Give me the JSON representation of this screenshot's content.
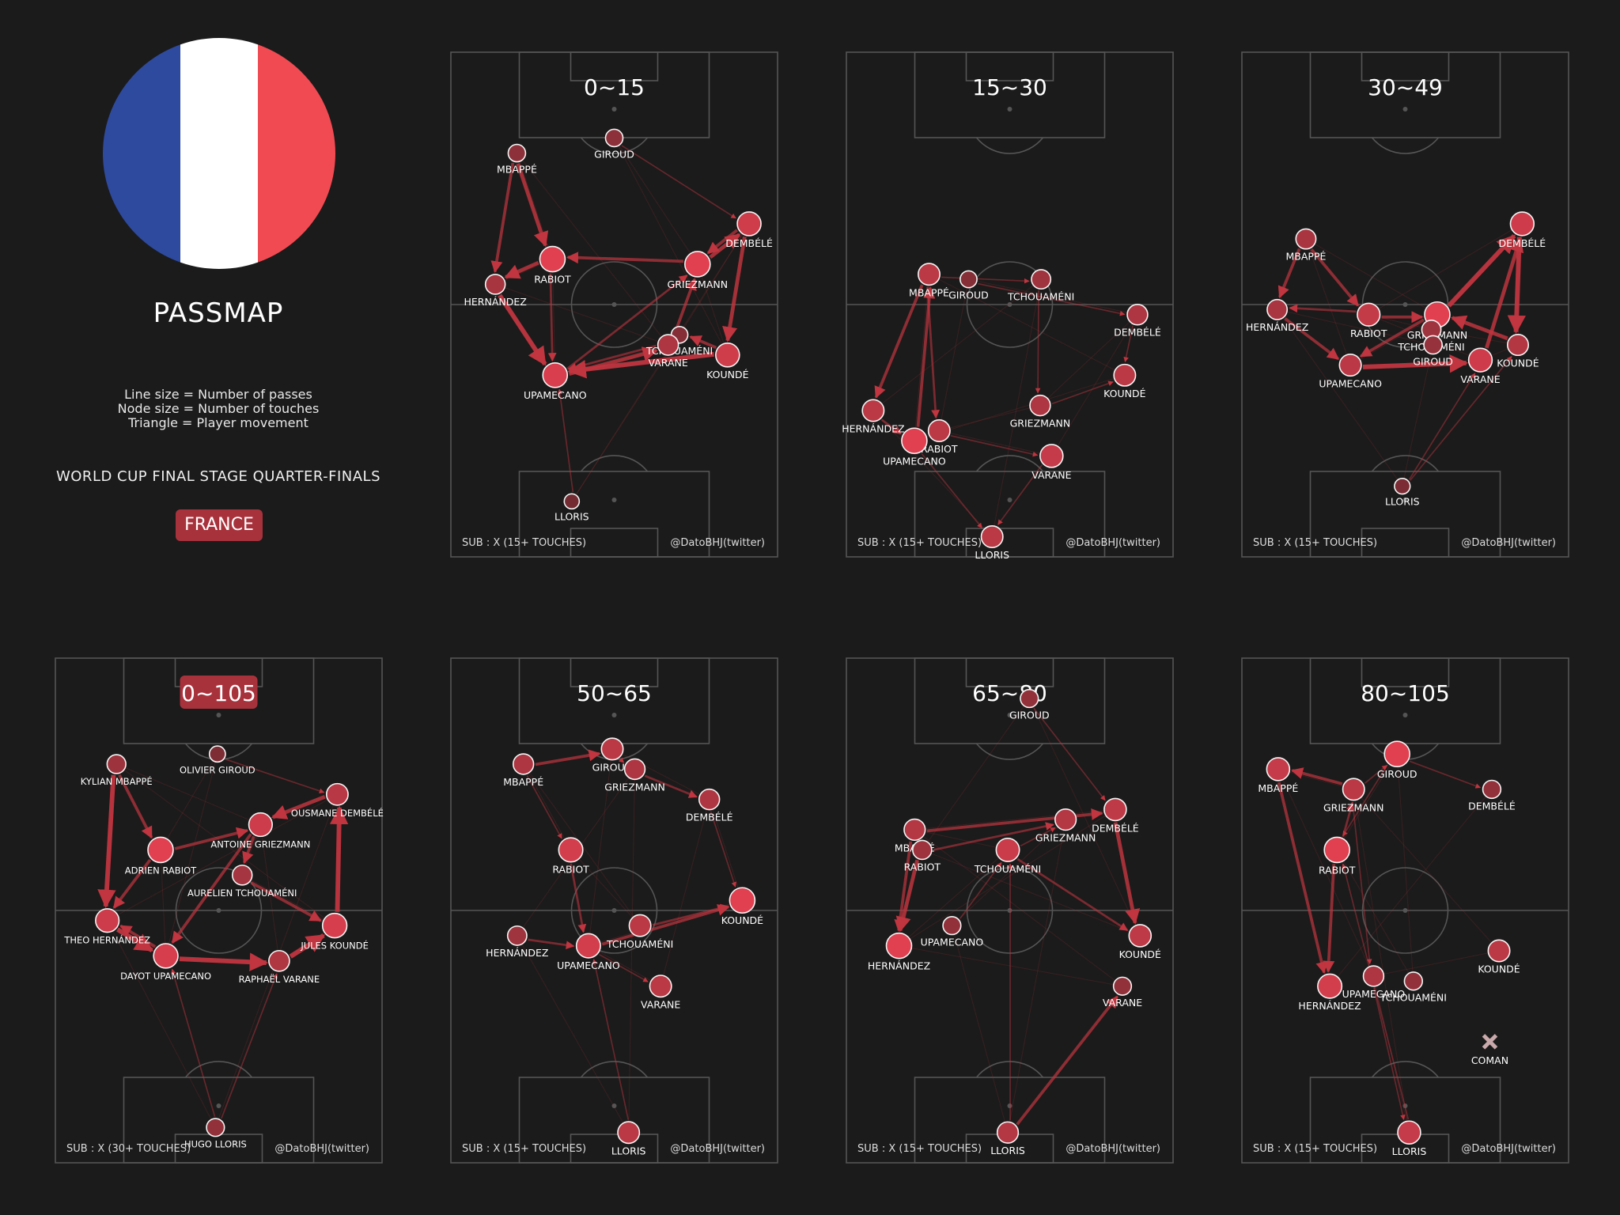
{
  "colors": {
    "background": "#1b1b1b",
    "line": "#555555",
    "accent": "#a8323c",
    "edge": "#c0353f",
    "node_hi": "#e04050",
    "node_lo": "#3a2022",
    "flag_blue": "#2e4a9e",
    "flag_white": "#ffffff",
    "flag_red": "#f24a52"
  },
  "header": {
    "title": "PASSMAP",
    "legend": [
      "Line size = Number of passes",
      "Node size = Number of touches",
      "Triangle = Player movement"
    ],
    "stage": "WORLD CUP FINAL STAGE QUARTER-FINALS",
    "team": "FRANCE"
  },
  "chart_data": [
    {
      "type": "network",
      "title": "0~15",
      "highlight": false,
      "sub_note": "SUB : X (15+ TOUCHES)",
      "credit": "@DatoBHJ(twitter)",
      "players": [
        {
          "name": "GIROUD",
          "x": 50.0,
          "y": 83,
          "t": 10
        },
        {
          "name": "MBAPPÉ",
          "x": 20.2,
          "y": 80,
          "t": 10
        },
        {
          "name": "DEMBÉLÉ",
          "x": 91.3,
          "y": 66,
          "t": 18
        },
        {
          "name": "RABIOT",
          "x": 31.1,
          "y": 59,
          "t": 20
        },
        {
          "name": "GRIEZMANN",
          "x": 75.5,
          "y": 58,
          "t": 20
        },
        {
          "name": "HERNÁNDEZ",
          "x": 13.6,
          "y": 54,
          "t": 13
        },
        {
          "name": "TCHOUAMÉNI",
          "x": 70.0,
          "y": 44,
          "t": 9
        },
        {
          "name": "VARANE",
          "x": 66.5,
          "y": 42,
          "t": 14
        },
        {
          "name": "KOUNDÉ",
          "x": 84.7,
          "y": 40,
          "t": 18
        },
        {
          "name": "UPAMECANO",
          "x": 31.9,
          "y": 36,
          "t": 19
        },
        {
          "name": "LLORIS",
          "x": 37.0,
          "y": 11,
          "t": 7
        }
      ],
      "passes": [
        [
          1,
          3,
          4
        ],
        [
          3,
          5,
          4
        ],
        [
          5,
          9,
          5
        ],
        [
          9,
          7,
          4
        ],
        [
          7,
          4,
          3
        ],
        [
          4,
          2,
          4
        ],
        [
          2,
          8,
          4
        ],
        [
          8,
          9,
          5
        ],
        [
          1,
          5,
          3
        ],
        [
          4,
          3,
          3
        ],
        [
          2,
          4,
          3
        ],
        [
          8,
          6,
          3
        ],
        [
          3,
          9,
          2
        ],
        [
          7,
          9,
          2
        ],
        [
          0,
          2,
          1
        ],
        [
          10,
          9,
          1
        ],
        [
          9,
          4,
          2
        ]
      ]
    },
    {
      "type": "network",
      "title": "15~30",
      "highlight": false,
      "sub_note": "SUB : X (15+ TOUCHES)",
      "credit": "@DatoBHJ(twitter)",
      "players": [
        {
          "name": "MBAPPÉ",
          "x": 25.3,
          "y": 56,
          "t": 10
        },
        {
          "name": "GIROUD",
          "x": 37.4,
          "y": 55,
          "t": 6
        },
        {
          "name": "TCHOUAMÉNI",
          "x": 59.6,
          "y": 55,
          "t": 8
        },
        {
          "name": "DEMBÉLÉ",
          "x": 89.1,
          "y": 48,
          "t": 9
        },
        {
          "name": "KOUNDÉ",
          "x": 85.2,
          "y": 36,
          "t": 10
        },
        {
          "name": "GRIEZMANN",
          "x": 59.3,
          "y": 30,
          "t": 9
        },
        {
          "name": "HERNÁNDEZ",
          "x": 8.2,
          "y": 29,
          "t": 10
        },
        {
          "name": "RABIOT",
          "x": 28.4,
          "y": 25,
          "t": 10
        },
        {
          "name": "UPAMECANO",
          "x": 20.8,
          "y": 23,
          "t": 13
        },
        {
          "name": "VARANE",
          "x": 62.8,
          "y": 20,
          "t": 11
        },
        {
          "name": "LLORIS",
          "x": 44.6,
          "y": 4,
          "t": 10
        }
      ],
      "passes": [
        [
          0,
          6,
          3
        ],
        [
          8,
          0,
          3
        ],
        [
          6,
          8,
          2
        ],
        [
          0,
          7,
          2
        ],
        [
          1,
          3,
          1
        ],
        [
          2,
          5,
          1
        ],
        [
          7,
          9,
          1
        ],
        [
          8,
          10,
          1
        ],
        [
          5,
          4,
          1
        ],
        [
          3,
          4,
          1
        ],
        [
          0,
          2,
          1
        ],
        [
          9,
          10,
          1
        ]
      ]
    },
    {
      "type": "network",
      "title": "30~49",
      "highlight": false,
      "sub_note": "SUB : X (15+ TOUCHES)",
      "credit": "@DatoBHJ(twitter)",
      "players": [
        {
          "name": "MBAPPÉ",
          "x": 19.6,
          "y": 63,
          "t": 12
        },
        {
          "name": "DEMBÉLÉ",
          "x": 85.8,
          "y": 66,
          "t": 16
        },
        {
          "name": "HERNÁNDEZ",
          "x": 10.8,
          "y": 49,
          "t": 12
        },
        {
          "name": "RABIOT",
          "x": 38.8,
          "y": 48,
          "t": 15
        },
        {
          "name": "GRIEZMANN",
          "x": 59.8,
          "y": 48,
          "t": 18
        },
        {
          "name": "TCHOUAMÉNI",
          "x": 58.0,
          "y": 45,
          "t": 11
        },
        {
          "name": "GIROUD",
          "x": 58.5,
          "y": 42,
          "t": 10
        },
        {
          "name": "KOUNDÉ",
          "x": 84.5,
          "y": 42,
          "t": 13
        },
        {
          "name": "UPAMECANO",
          "x": 33.2,
          "y": 38,
          "t": 14
        },
        {
          "name": "VARANE",
          "x": 73.0,
          "y": 39,
          "t": 16
        },
        {
          "name": "LLORIS",
          "x": 49.1,
          "y": 14,
          "t": 7
        }
      ],
      "passes": [
        [
          0,
          2,
          3
        ],
        [
          0,
          3,
          3
        ],
        [
          1,
          7,
          5
        ],
        [
          4,
          1,
          5
        ],
        [
          9,
          1,
          4
        ],
        [
          3,
          4,
          3
        ],
        [
          7,
          4,
          4
        ],
        [
          8,
          9,
          5
        ],
        [
          2,
          8,
          3
        ],
        [
          3,
          2,
          2
        ],
        [
          10,
          7,
          1
        ],
        [
          10,
          9,
          1
        ],
        [
          4,
          8,
          3
        ]
      ]
    },
    {
      "type": "network",
      "title": "0~105",
      "highlight": true,
      "sub_note": "SUB : X (30+ TOUCHES)",
      "credit": "@DatoBHJ(twitter)",
      "players": [
        {
          "name": "OLIVIER GIROUD",
          "x": 49.6,
          "y": 81,
          "t": 7
        },
        {
          "name": "KYLIAN MBAPPÉ",
          "x": 18.7,
          "y": 79,
          "t": 10
        },
        {
          "name": "OUSMANE DEMBÉLÉ",
          "x": 86.3,
          "y": 73,
          "t": 13
        },
        {
          "name": "ANTOINE GRIEZMANN",
          "x": 62.8,
          "y": 67,
          "t": 15
        },
        {
          "name": "ADRIEN RABIOT",
          "x": 32.2,
          "y": 62,
          "t": 17
        },
        {
          "name": "AURELIEN TCHOUAMÉNI",
          "x": 57.2,
          "y": 57,
          "t": 11
        },
        {
          "name": "THEO HERNÁNDEZ",
          "x": 15.9,
          "y": 48,
          "t": 15
        },
        {
          "name": "JULES KOUNDÉ",
          "x": 85.5,
          "y": 47,
          "t": 16
        },
        {
          "name": "DAYOT UPAMECANO",
          "x": 33.8,
          "y": 41,
          "t": 16
        },
        {
          "name": "RAPHAËL VARANE",
          "x": 68.5,
          "y": 40,
          "t": 12
        },
        {
          "name": "HUGO LLORIS",
          "x": 49.0,
          "y": 7,
          "t": 9
        }
      ],
      "passes": [
        [
          1,
          6,
          5
        ],
        [
          6,
          8,
          5
        ],
        [
          8,
          9,
          5
        ],
        [
          9,
          7,
          5
        ],
        [
          7,
          2,
          5
        ],
        [
          2,
          3,
          4
        ],
        [
          3,
          5,
          3
        ],
        [
          4,
          6,
          3
        ],
        [
          5,
          7,
          3
        ],
        [
          1,
          4,
          3
        ],
        [
          4,
          3,
          3
        ],
        [
          3,
          8,
          3
        ],
        [
          8,
          6,
          3
        ],
        [
          0,
          2,
          1
        ],
        [
          10,
          8,
          1
        ],
        [
          10,
          9,
          1
        ]
      ]
    },
    {
      "type": "network",
      "title": "50~65",
      "highlight": false,
      "sub_note": "SUB : X (15+ TOUCHES)",
      "credit": "@DatoBHJ(twitter)",
      "players": [
        {
          "name": "MBAPPÉ",
          "x": 22.2,
          "y": 79,
          "t": 9
        },
        {
          "name": "GIROUD",
          "x": 49.4,
          "y": 82,
          "t": 10
        },
        {
          "name": "GRIEZMANN",
          "x": 56.3,
          "y": 78,
          "t": 9
        },
        {
          "name": "DEMBÉLÉ",
          "x": 79.1,
          "y": 72,
          "t": 9
        },
        {
          "name": "RABIOT",
          "x": 36.7,
          "y": 62,
          "t": 12
        },
        {
          "name": "KOUNDÉ",
          "x": 89.2,
          "y": 52,
          "t": 13
        },
        {
          "name": "HERNÁNDEZ",
          "x": 20.3,
          "y": 45,
          "t": 8
        },
        {
          "name": "UPAMECANO",
          "x": 42.1,
          "y": 43,
          "t": 12
        },
        {
          "name": "TCHOUAMÉNI",
          "x": 57.9,
          "y": 47,
          "t": 10
        },
        {
          "name": "VARANE",
          "x": 64.2,
          "y": 35,
          "t": 10
        },
        {
          "name": "LLORIS",
          "x": 54.4,
          "y": 6,
          "t": 10
        }
      ],
      "passes": [
        [
          0,
          1,
          3
        ],
        [
          7,
          5,
          3
        ],
        [
          8,
          5,
          2
        ],
        [
          4,
          7,
          2
        ],
        [
          6,
          7,
          2
        ],
        [
          2,
          3,
          2
        ],
        [
          7,
          9,
          1
        ],
        [
          3,
          5,
          1
        ],
        [
          0,
          4,
          1
        ],
        [
          10,
          7,
          1
        ],
        [
          1,
          2,
          1
        ]
      ]
    },
    {
      "type": "network",
      "title": "65~80",
      "highlight": false,
      "sub_note": "SUB : X (15+ TOUCHES)",
      "credit": "@DatoBHJ(twitter)",
      "players": [
        {
          "name": "GIROUD",
          "x": 56.0,
          "y": 92,
          "t": 8
        },
        {
          "name": "DEMBÉLÉ",
          "x": 82.3,
          "y": 70,
          "t": 12
        },
        {
          "name": "GRIEZMANN",
          "x": 67.1,
          "y": 68,
          "t": 11
        },
        {
          "name": "MBAPPÉ",
          "x": 20.9,
          "y": 66,
          "t": 11
        },
        {
          "name": "RABIOT",
          "x": 23.2,
          "y": 62,
          "t": 9
        },
        {
          "name": "TCHOUAMÉNI",
          "x": 49.4,
          "y": 62,
          "t": 13
        },
        {
          "name": "UPAMECANO",
          "x": 32.3,
          "y": 47,
          "t": 8
        },
        {
          "name": "HERNÁNDEZ",
          "x": 16.1,
          "y": 43,
          "t": 15
        },
        {
          "name": "KOUNDÉ",
          "x": 89.9,
          "y": 45,
          "t": 12
        },
        {
          "name": "VARANE",
          "x": 84.5,
          "y": 35,
          "t": 8
        },
        {
          "name": "LLORIS",
          "x": 49.4,
          "y": 6,
          "t": 11
        }
      ],
      "passes": [
        [
          3,
          1,
          3
        ],
        [
          4,
          7,
          4
        ],
        [
          3,
          7,
          3
        ],
        [
          1,
          8,
          4
        ],
        [
          10,
          9,
          3
        ],
        [
          5,
          8,
          2
        ],
        [
          4,
          2,
          2
        ],
        [
          0,
          1,
          1
        ],
        [
          5,
          2,
          1
        ],
        [
          6,
          5,
          1
        ],
        [
          10,
          5,
          1
        ]
      ]
    },
    {
      "type": "network",
      "title": "80~105",
      "highlight": false,
      "sub_note": "SUB : X (15+ TOUCHES)",
      "credit": "@DatoBHJ(twitter)",
      "players": [
        {
          "name": "GIROUD",
          "x": 47.5,
          "y": 81,
          "t": 13
        },
        {
          "name": "MBAPPÉ",
          "x": 11.1,
          "y": 78,
          "t": 11
        },
        {
          "name": "DEMBÉLÉ",
          "x": 76.5,
          "y": 74,
          "t": 7
        },
        {
          "name": "GRIEZMANN",
          "x": 34.2,
          "y": 74,
          "t": 10
        },
        {
          "name": "RABIOT",
          "x": 29.1,
          "y": 62,
          "t": 13
        },
        {
          "name": "KOUNDÉ",
          "x": 78.7,
          "y": 42,
          "t": 10
        },
        {
          "name": "HERNÁNDEZ",
          "x": 26.9,
          "y": 35,
          "t": 12
        },
        {
          "name": "UPAMECANO",
          "x": 40.3,
          "y": 37,
          "t": 9
        },
        {
          "name": "TCHOUAMÉNI",
          "x": 52.5,
          "y": 36,
          "t": 7
        },
        {
          "name": "LLORIS",
          "x": 51.2,
          "y": 6,
          "t": 11
        }
      ],
      "passes": [
        [
          3,
          1,
          3
        ],
        [
          1,
          6,
          3
        ],
        [
          4,
          6,
          3
        ],
        [
          4,
          3,
          2
        ],
        [
          0,
          2,
          1
        ],
        [
          3,
          7,
          1
        ],
        [
          7,
          9,
          1
        ],
        [
          9,
          4,
          1
        ],
        [
          0,
          4,
          1
        ],
        [
          3,
          0,
          1
        ]
      ],
      "sub": {
        "name": "COMAN",
        "x": 75.9,
        "y": 24
      }
    }
  ]
}
